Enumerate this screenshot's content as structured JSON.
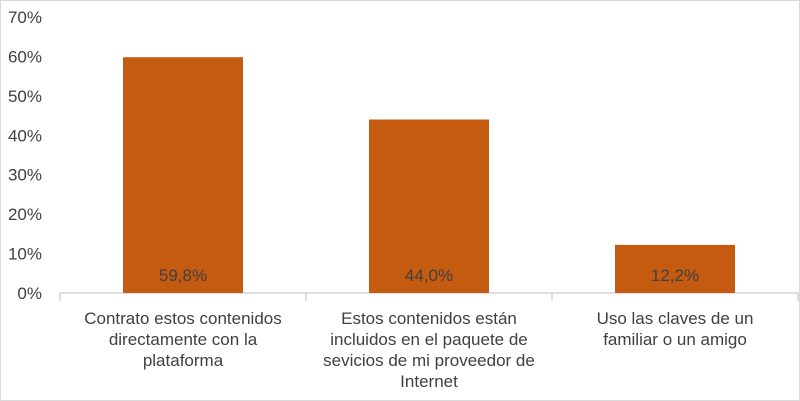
{
  "chart_data": {
    "type": "bar",
    "categories": [
      [
        "Contrato estos contenidos",
        "directamente con la",
        "plataforma"
      ],
      [
        "Estos contenidos están",
        "incluidos en el paquete de",
        "sevicios de mi proveedor de",
        "Internet"
      ],
      [
        "Uso las claves de un",
        "familiar o un amigo"
      ]
    ],
    "values": [
      59.8,
      44.0,
      12.2
    ],
    "data_labels": [
      "59,8%",
      "44,0%",
      "12,2%"
    ],
    "ylim": [
      0,
      70
    ],
    "yticks": [
      0,
      10,
      20,
      30,
      40,
      50,
      60,
      70
    ],
    "ytick_labels": [
      "0%",
      "10%",
      "20%",
      "30%",
      "40%",
      "50%",
      "60%",
      "70%"
    ],
    "bar_color": "#c55a11",
    "grid": false,
    "legend": "none"
  }
}
